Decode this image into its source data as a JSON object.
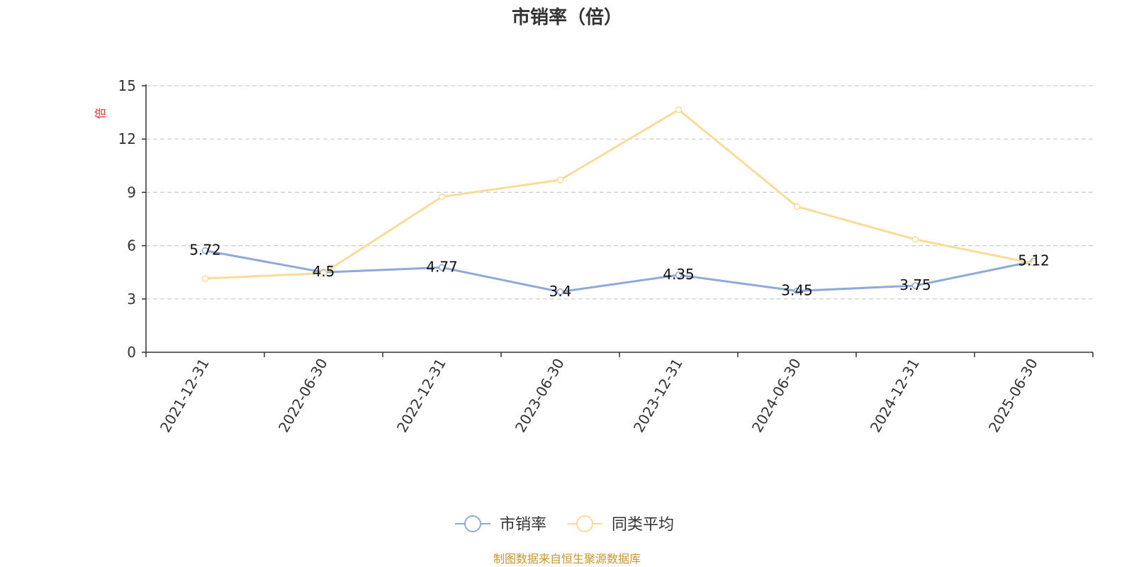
{
  "chart_data": {
    "type": "line",
    "title": "市销率（倍）",
    "ylabel": "倍",
    "xlabel": "",
    "categories": [
      "2021-12-31",
      "2022-06-30",
      "2022-12-31",
      "2023-06-30",
      "2023-12-31",
      "2024-06-30",
      "2024-12-31",
      "2025-06-30"
    ],
    "ylim": [
      0,
      15
    ],
    "yticks": [
      0,
      3,
      6,
      9,
      12,
      15
    ],
    "grid": true,
    "legend_position": "bottom",
    "series": [
      {
        "name": "市销率",
        "color": "#8eaad8",
        "values": [
          5.72,
          4.5,
          4.77,
          3.4,
          4.35,
          3.45,
          3.75,
          5.12
        ],
        "labels": [
          "5.72",
          "4.5",
          "4.77",
          "3.4",
          "4.35",
          "3.45",
          "3.75",
          "5.12"
        ]
      },
      {
        "name": "同类平均",
        "color": "#fadb98",
        "values": [
          4.15,
          4.45,
          8.75,
          9.7,
          13.65,
          8.2,
          6.35,
          5.0
        ]
      }
    ],
    "source": "制图数据来自恒生聚源数据库"
  }
}
